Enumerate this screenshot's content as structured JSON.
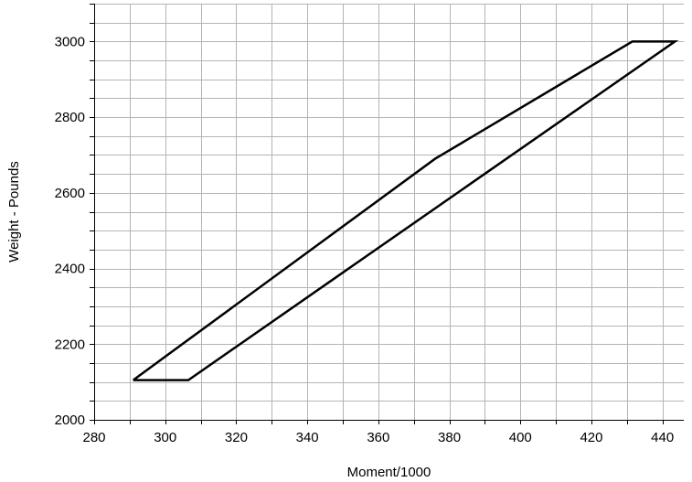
{
  "chart_data": {
    "type": "line",
    "title": "",
    "xlabel": "Moment/1000",
    "ylabel": "Weight - Pounds",
    "xlim": [
      280,
      446
    ],
    "ylim": [
      2000,
      3100
    ],
    "xticks": [
      280,
      300,
      320,
      340,
      360,
      380,
      400,
      420,
      440
    ],
    "yticks": [
      2000,
      2200,
      2400,
      2600,
      2800,
      3000
    ],
    "x_minor_step": 10,
    "y_minor_step": 50,
    "grid": true,
    "line_color": "#000000",
    "grid_color": "#b4b4b4",
    "series": [
      {
        "closed": true,
        "points": [
          {
            "x": 291,
            "y": 2105
          },
          {
            "x": 306.5,
            "y": 2105
          },
          {
            "x": 443.5,
            "y": 3000
          },
          {
            "x": 431.5,
            "y": 3000
          },
          {
            "x": 376,
            "y": 2690
          },
          {
            "x": 291,
            "y": 2105
          }
        ]
      }
    ]
  }
}
